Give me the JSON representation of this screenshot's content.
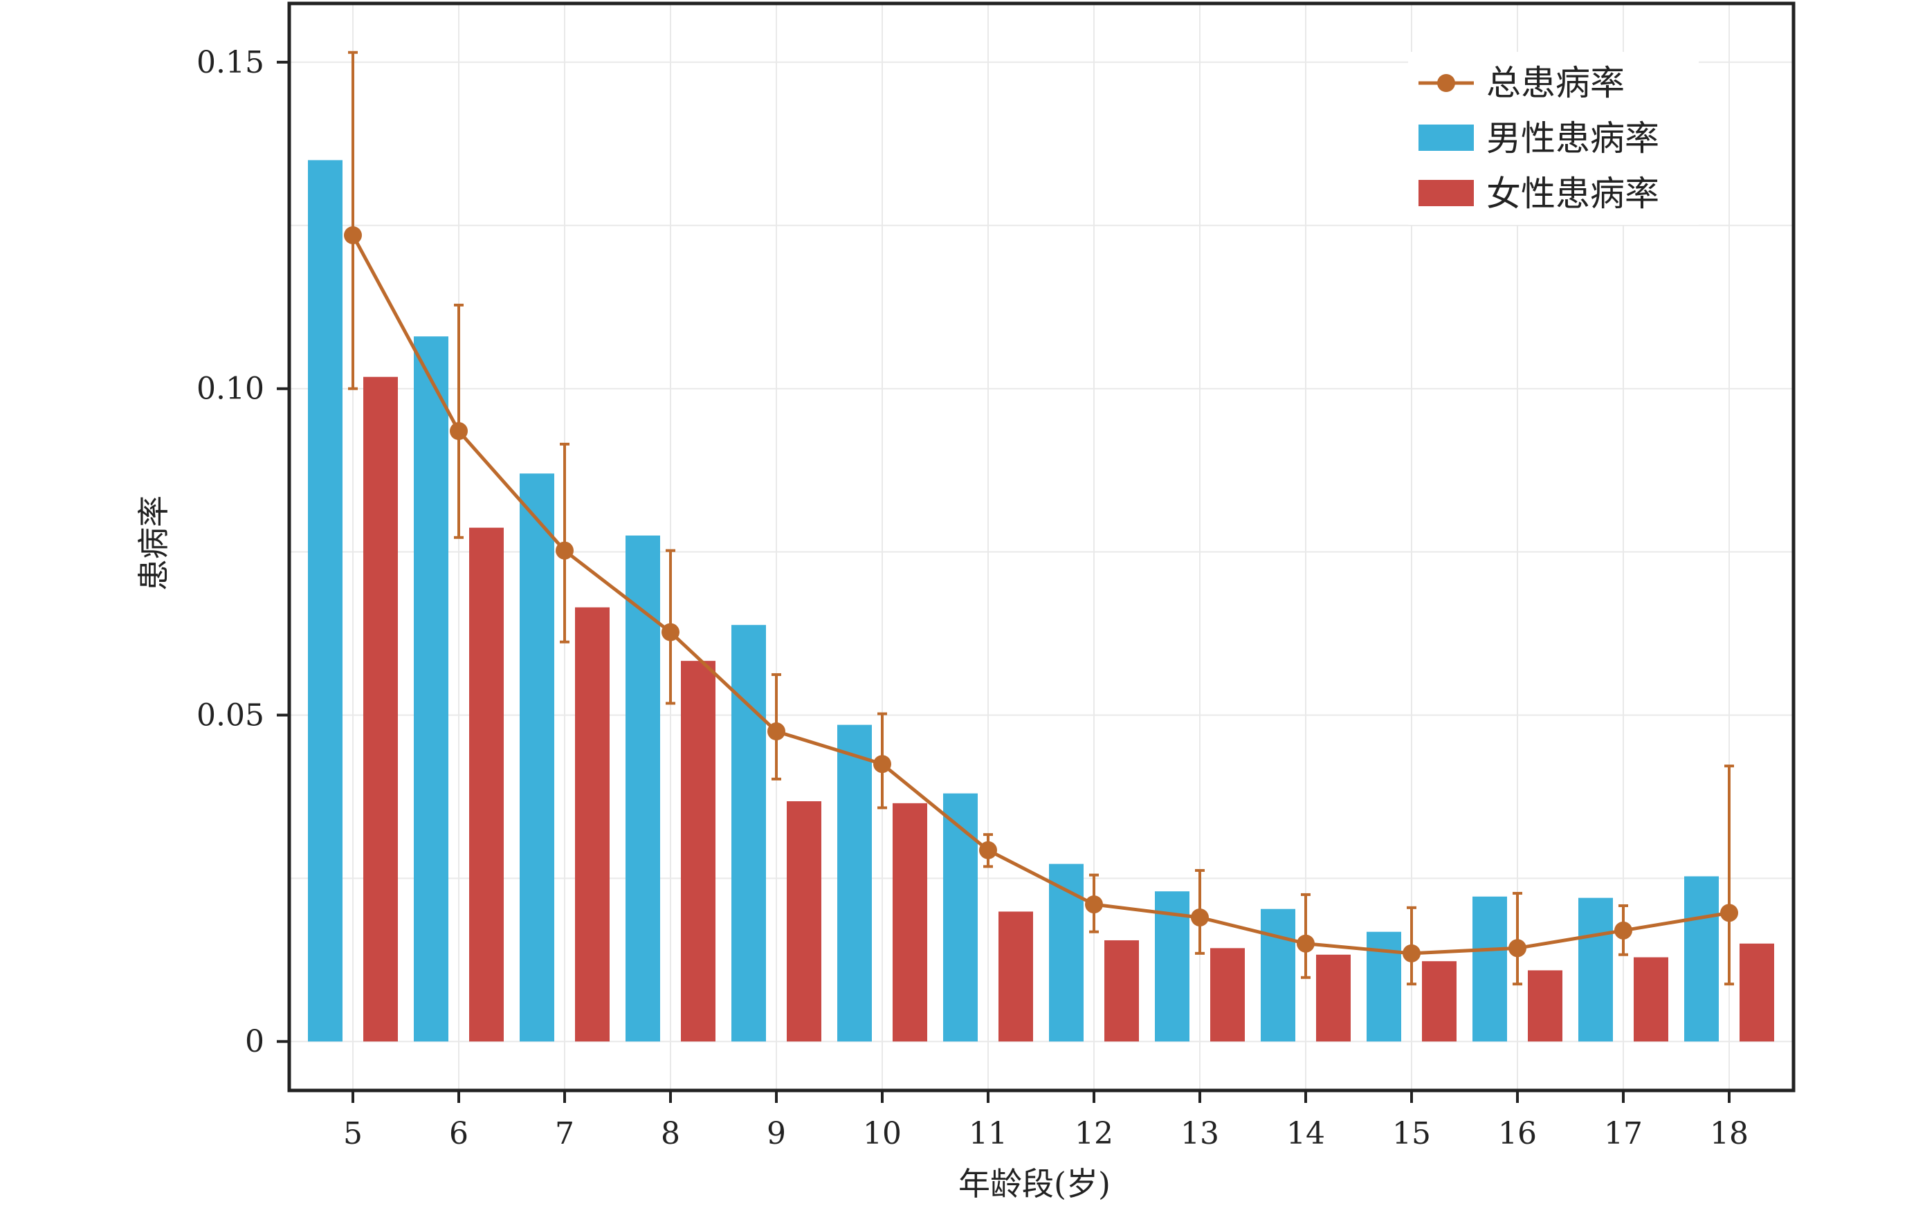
{
  "chart_data": {
    "type": "bar",
    "title": "",
    "xlabel": "年龄段(岁)",
    "ylabel": "患病率",
    "categories": [
      "5",
      "6",
      "7",
      "8",
      "9",
      "10",
      "11",
      "12",
      "13",
      "14",
      "15",
      "16",
      "17",
      "18"
    ],
    "ylim": [
      -0.0075,
      0.159
    ],
    "yticks": [
      0,
      0.05,
      0.1,
      0.15
    ],
    "ytick_labels": [
      "0",
      "0.05",
      "0.10",
      "0.15"
    ],
    "grid": true,
    "legend_position": "top-right",
    "series": [
      {
        "name": "男性患病率",
        "kind": "bar",
        "color": "#3db1da",
        "values": [
          0.135,
          0.108,
          0.087,
          0.0775,
          0.0638,
          0.0485,
          0.038,
          0.0272,
          0.023,
          0.0203,
          0.0168,
          0.0222,
          0.022,
          0.0253
        ]
      },
      {
        "name": "女性患病率",
        "kind": "bar",
        "color": "#c84944",
        "values": [
          0.1018,
          0.0787,
          0.0665,
          0.0583,
          0.0368,
          0.0365,
          0.0199,
          0.0155,
          0.0143,
          0.0133,
          0.0123,
          0.0109,
          0.0129,
          0.015
        ]
      },
      {
        "name": "总患病率",
        "kind": "line",
        "color": "#bd6a2c",
        "values": [
          0.1235,
          0.0935,
          0.0752,
          0.0627,
          0.0475,
          0.0425,
          0.0293,
          0.021,
          0.019,
          0.015,
          0.0135,
          0.0143,
          0.017,
          0.0197
        ],
        "error_low": [
          0.1,
          0.0772,
          0.0612,
          0.0518,
          0.0402,
          0.0358,
          0.0268,
          0.0168,
          0.0135,
          0.0098,
          0.0088,
          0.0088,
          0.0133,
          0.0088
        ],
        "error_high": [
          0.1515,
          0.1128,
          0.0915,
          0.0752,
          0.0562,
          0.0502,
          0.0317,
          0.0255,
          0.0262,
          0.0225,
          0.0205,
          0.0227,
          0.0208,
          0.0422
        ]
      }
    ]
  }
}
